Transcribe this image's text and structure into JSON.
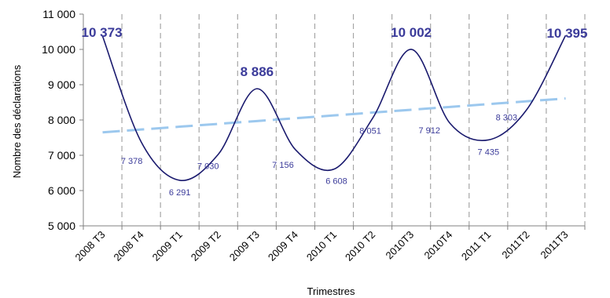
{
  "chart_data": {
    "type": "line",
    "xlabel": "Trimestres",
    "ylabel": "Nombre  des déclarations",
    "ylim": [
      5000,
      11000
    ],
    "yticks": [
      5000,
      6000,
      7000,
      8000,
      9000,
      10000,
      11000
    ],
    "ytick_labels": [
      "5 000",
      "6 000",
      "7 000",
      "8 000",
      "9 000",
      "10 000",
      "11 000"
    ],
    "categories": [
      "2008 T3",
      "2008 T4",
      "2009 T1",
      "2009 T2",
      "2009 T3",
      "2009 T4",
      "2010 T1",
      "2010 T2",
      "2010T3",
      "2010T4",
      "2011 T1",
      "2011T2",
      "2011T3"
    ],
    "series": [
      {
        "values": [
          10373,
          7378,
          6291,
          7030,
          8886,
          7156,
          6608,
          8051,
          10002,
          7912,
          7435,
          8303,
          10395
        ],
        "labels": [
          "10 373",
          "7 378",
          "6 291",
          "7 030",
          "8 886",
          "7 156",
          "6 608",
          "8 051",
          "10 002",
          "7 912",
          "7 435",
          "8 303",
          "10 395"
        ],
        "highlight": [
          true,
          false,
          false,
          false,
          true,
          false,
          false,
          false,
          true,
          false,
          false,
          false,
          true
        ],
        "color": "#1a1a6e"
      },
      {
        "type": "trend",
        "values": [
          7650,
          7730,
          7810,
          7890,
          7970,
          8050,
          8130,
          8210,
          8290,
          8370,
          8450,
          8530,
          8610
        ],
        "color": "#9cc8ee",
        "dashed": true
      }
    ],
    "label_color": "#3b3b9a",
    "grid": "vertical-dashed",
    "grid_color": "#a6a6a6"
  }
}
